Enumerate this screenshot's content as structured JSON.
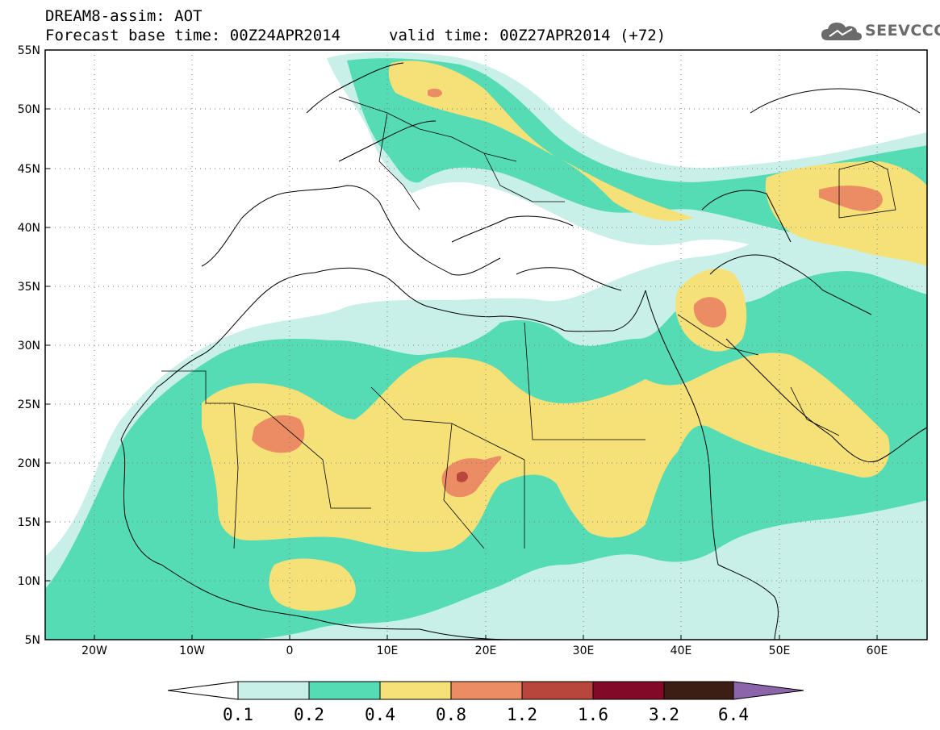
{
  "header": {
    "title_line1": "DREAM8-assim: AOT",
    "title_line2_left": "Forecast base time: 00Z24APR2014",
    "title_line2_right": "valid time: 00Z27APR2014 (+72)",
    "logo_text": "SEEVCCC",
    "logo_icon": "cloud-icon"
  },
  "map": {
    "lat_labels": [
      "55N",
      "50N",
      "45N",
      "40N",
      "35N",
      "30N",
      "25N",
      "20N",
      "15N",
      "10N",
      "5N"
    ],
    "lon_labels": [
      "20W",
      "10W",
      "0",
      "10E",
      "20E",
      "30E",
      "40E",
      "50E",
      "60E"
    ],
    "lon_range": [
      -25,
      65
    ],
    "lat_range": [
      5,
      55
    ]
  },
  "colorbar": {
    "labels": [
      "0.1",
      "0.2",
      "0.4",
      "0.8",
      "1.2",
      "1.6",
      "3.2",
      "6.4"
    ],
    "colors": [
      "#ffffff",
      "#c8f0e8",
      "#55dcb4",
      "#f5e178",
      "#eb8c64",
      "#b9463c",
      "#820a28",
      "#3c1e14",
      "#8c64aa"
    ]
  },
  "colors": {
    "c1": "#c8f0e8",
    "c2": "#55dcb4",
    "c3": "#f5e178",
    "c4": "#eb8c64",
    "c5": "#b9463c"
  }
}
